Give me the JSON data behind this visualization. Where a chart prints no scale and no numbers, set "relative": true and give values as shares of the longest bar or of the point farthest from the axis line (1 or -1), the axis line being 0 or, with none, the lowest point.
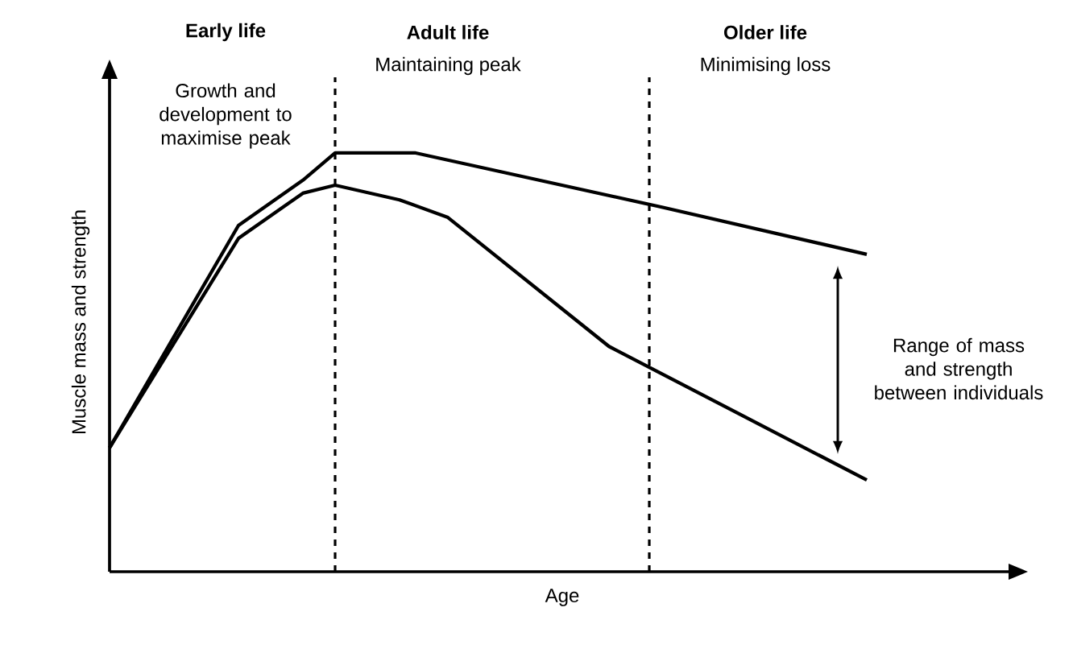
{
  "chart_data": {
    "type": "line",
    "relative": true,
    "xlabel": "Age",
    "ylabel": "Muscle mass and strength",
    "tick_labels": false,
    "categories": [
      null,
      null,
      null,
      null,
      null,
      null,
      null,
      null,
      null,
      null,
      null,
      null,
      null,
      null,
      null,
      null,
      null,
      null,
      null,
      null,
      null,
      null,
      null,
      null,
      null,
      null,
      null,
      null,
      null,
      null,
      null,
      null,
      null,
      null,
      null,
      null,
      null,
      null,
      null,
      null,
      null,
      null,
      null,
      null,
      null,
      null,
      null,
      null
    ],
    "series": [
      {
        "color": "#000000",
        "values": [
          0.296,
          null,
          null,
          null,
          null,
          null,
          null,
          null,
          0.827,
          null,
          null,
          null,
          0.935,
          null,
          1.0,
          null,
          null,
          null,
          null,
          1.0,
          null,
          null,
          null,
          null,
          null,
          null,
          null,
          null,
          null,
          null,
          null,
          null,
          null,
          null,
          0.873,
          null,
          null,
          null,
          null,
          null,
          null,
          null,
          null,
          null,
          null,
          null,
          null,
          0.758
        ]
      },
      {
        "color": "#000000",
        "values": [
          0.296,
          null,
          null,
          null,
          null,
          null,
          null,
          null,
          0.796,
          null,
          null,
          null,
          0.904,
          null,
          0.923,
          null,
          null,
          null,
          0.888,
          null,
          null,
          0.846,
          null,
          null,
          null,
          null,
          null,
          null,
          null,
          null,
          null,
          0.538,
          null,
          null,
          null,
          null,
          null,
          null,
          null,
          null,
          null,
          null,
          null,
          null,
          null,
          null,
          null,
          0.219
        ]
      }
    ],
    "annotations": [
      "Early life",
      "Growth and development to maximise peak",
      "Adult life",
      "Maintaining peak",
      "Older life",
      "Minimising loss",
      "Range of mass and strength between individuals"
    ]
  }
}
